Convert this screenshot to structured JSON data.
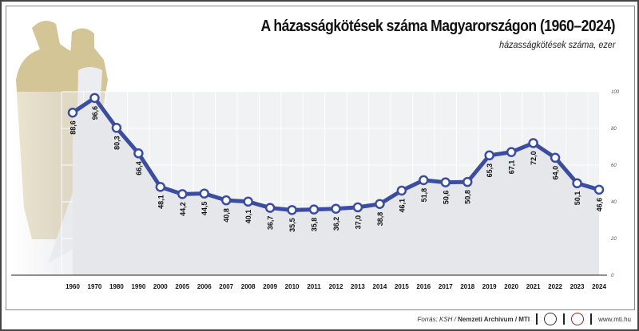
{
  "chart_data": {
    "type": "line",
    "title": "A házasságkötések száma Magyarországon (1960–2024)",
    "subtitle": "házasságkötések száma, ezer",
    "categories": [
      "1960",
      "1970",
      "1980",
      "1990",
      "2000",
      "2005",
      "2006",
      "2007",
      "2008",
      "2009",
      "2010",
      "2011",
      "2012",
      "2013",
      "2014",
      "2015",
      "2016",
      "2017",
      "2018",
      "2019",
      "2020",
      "2021",
      "2022",
      "2023",
      "2024"
    ],
    "values": [
      88.6,
      96.6,
      80.3,
      66.4,
      48.1,
      44.2,
      44.5,
      40.8,
      40.1,
      36.7,
      35.5,
      35.8,
      36.2,
      37.0,
      38.8,
      46.1,
      51.8,
      50.6,
      50.8,
      65.3,
      67.1,
      72.0,
      64.0,
      50.1,
      46.6
    ],
    "value_labels": [
      "88,6",
      "96,6",
      "80,3",
      "66,4",
      "48,1",
      "44,2",
      "44,5",
      "40,8",
      "40,1",
      "36,7",
      "35,5",
      "35,8",
      "36,2",
      "37,0",
      "38,8",
      "46,1",
      "51,8",
      "50,6",
      "50,8",
      "65,3",
      "67,1",
      "72,0",
      "64,0",
      "50,1",
      "46,6"
    ],
    "yticks": [
      "0",
      "20",
      "40",
      "60",
      "80",
      "100"
    ],
    "ylim": [
      0,
      100
    ],
    "grid": true,
    "line_color": "#3b4d9e",
    "area_color": "#e6e7ea",
    "illustration": "wedding-couple"
  },
  "footer": {
    "source_prefix": "Forrás: KSH / ",
    "source_bold": "Nemzeti Archívum",
    "source_suffix": " / MTI",
    "logo1": "MTVA",
    "logo2": "MTI",
    "url": "www.mti.hu"
  }
}
